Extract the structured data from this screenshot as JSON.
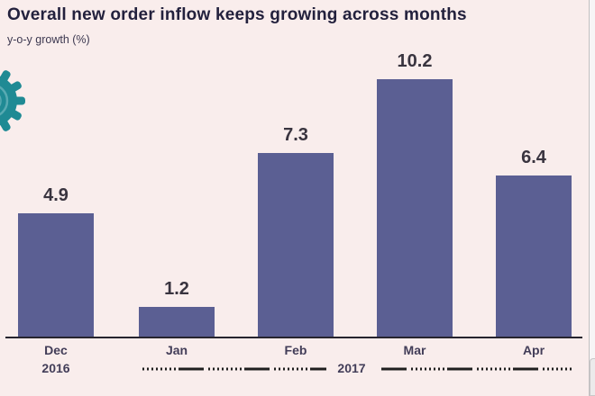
{
  "header": {
    "title": "Overall new order inflow keeps growing across months",
    "subtitle": "y-o-y growth (%)"
  },
  "chart_data": {
    "type": "bar",
    "categories": [
      "Dec",
      "Jan",
      "Feb",
      "Mar",
      "Apr"
    ],
    "values": [
      4.9,
      1.2,
      7.3,
      10.2,
      6.4
    ],
    "value_labels": [
      "4.9",
      "1.2",
      "7.3",
      "10.2",
      "6.4"
    ],
    "title": "Overall new order inflow keeps growing across months",
    "xlabel": "",
    "ylabel": "y-o-y growth (%)",
    "ylim": [
      0,
      11
    ],
    "grid": false,
    "legend": false,
    "bar_color": "#5b5f93",
    "year_label_start": "2016",
    "year_label_mid": "2017"
  },
  "colors": {
    "background": "#f9edec",
    "bar": "#5b5f93",
    "title_text": "#23213d",
    "value_text": "#39343f",
    "month_text": "#423d58",
    "axis_line": "#26242e",
    "dash_line": "#1f1f1f",
    "gear_teal": "#1f8a94",
    "gear_ring": "#58aab2"
  },
  "icons": {
    "gear": "gear-icon"
  }
}
